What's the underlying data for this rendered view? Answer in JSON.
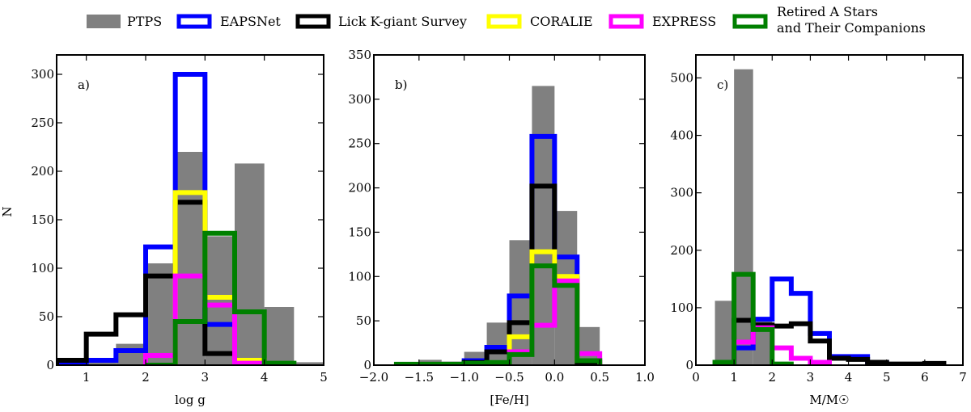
{
  "legend": [
    {
      "label": "PTPS",
      "color": "#808080",
      "style": "filled"
    },
    {
      "label": "EAPSNet",
      "color": "#0000ff",
      "style": "outline"
    },
    {
      "label": "Lick K-giant Survey",
      "color": "#000000",
      "style": "outline"
    },
    {
      "label": "CORALIE",
      "color": "#ffff00",
      "style": "outline"
    },
    {
      "label": "EXPRESS",
      "color": "#ff00ff",
      "style": "outline"
    },
    {
      "label": "Retired A Stars",
      "label2": "and Their Companions",
      "color": "#008000",
      "style": "outline"
    }
  ],
  "y_axis_label": "N",
  "chart_data": [
    {
      "type": "histogram",
      "panel_label": "a)",
      "xlabel": "log g",
      "xlim": [
        0.5,
        5
      ],
      "ylim": [
        0,
        320
      ],
      "xticks": [
        1,
        2,
        3,
        4,
        5
      ],
      "yticks": [
        0,
        50,
        100,
        150,
        200,
        250,
        300
      ],
      "series": [
        {
          "name": "PTPS",
          "bins": [
            0.5,
            1.0,
            1.5,
            2.0,
            2.5,
            3.0,
            3.5,
            4.0,
            4.5,
            5.0
          ],
          "values": [
            3,
            5,
            22,
            105,
            220,
            133,
            208,
            60,
            3
          ]
        },
        {
          "name": "EAPSNet",
          "bins": [
            0.5,
            1.0,
            1.5,
            2.0,
            2.5,
            3.0,
            3.5
          ],
          "values": [
            0,
            5,
            15,
            122,
            300,
            42
          ]
        },
        {
          "name": "Lick K-giant Survey",
          "bins": [
            0.5,
            1.0,
            1.5,
            2.0,
            2.5,
            3.0,
            3.5
          ],
          "values": [
            5,
            32,
            52,
            92,
            168,
            12
          ]
        },
        {
          "name": "CORALIE",
          "bins": [
            2.5,
            3.0,
            3.5,
            4.0
          ],
          "values": [
            178,
            70,
            5
          ]
        },
        {
          "name": "EXPRESS",
          "bins": [
            2.0,
            2.5,
            3.0,
            3.5,
            4.0
          ],
          "values": [
            10,
            92,
            62,
            2
          ]
        },
        {
          "name": "Retired A Stars and Their Companions",
          "bins": [
            2.0,
            2.5,
            3.0,
            3.5,
            4.0,
            4.5
          ],
          "values": [
            0,
            45,
            136,
            55,
            2
          ]
        }
      ]
    },
    {
      "type": "histogram",
      "panel_label": "b)",
      "xlabel": "[Fe/H]",
      "xlim": [
        -2.0,
        1.0
      ],
      "ylim": [
        0,
        350
      ],
      "xticks": [
        -2.0,
        -1.5,
        -1.0,
        -0.5,
        0.0,
        0.5,
        1.0
      ],
      "yticks": [
        0,
        50,
        100,
        150,
        200,
        250,
        300,
        350
      ],
      "series": [
        {
          "name": "PTPS",
          "bins": [
            -1.75,
            -1.5,
            -1.25,
            -1.0,
            -0.75,
            -0.5,
            -0.25,
            0.0,
            0.25,
            0.5
          ],
          "values": [
            2,
            6,
            4,
            15,
            48,
            141,
            315,
            174,
            43
          ]
        },
        {
          "name": "EAPSNet",
          "bins": [
            -1.0,
            -0.75,
            -0.5,
            -0.25,
            0.0,
            0.25,
            0.5
          ],
          "values": [
            5,
            20,
            78,
            258,
            122,
            5
          ]
        },
        {
          "name": "Lick K-giant Survey",
          "bins": [
            -1.0,
            -0.75,
            -0.5,
            -0.25,
            0.0,
            0.25,
            0.5
          ],
          "values": [
            3,
            15,
            48,
            202,
            98,
            3
          ]
        },
        {
          "name": "CORALIE",
          "bins": [
            -0.5,
            -0.25,
            0.0,
            0.25,
            0.5
          ],
          "values": [
            32,
            128,
            100,
            5
          ]
        },
        {
          "name": "EXPRESS",
          "bins": [
            -0.5,
            -0.25,
            0.0,
            0.25,
            0.5
          ],
          "values": [
            15,
            45,
            95,
            13
          ]
        },
        {
          "name": "Retired A Stars and Their Companions",
          "bins": [
            -1.75,
            -1.5,
            -1.25,
            -1.0,
            -0.75,
            -0.5,
            -0.25,
            0.0,
            0.25,
            0.5
          ],
          "values": [
            1,
            1,
            1,
            2,
            3,
            12,
            112,
            90,
            5
          ]
        }
      ]
    },
    {
      "type": "histogram",
      "panel_label": "c)",
      "xlabel": "M/M☉",
      "xlim": [
        0,
        7
      ],
      "ylim": [
        0,
        540
      ],
      "xticks": [
        0,
        1,
        2,
        3,
        4,
        5,
        6,
        7
      ],
      "yticks": [
        0,
        100,
        200,
        300,
        400,
        500
      ],
      "series": [
        {
          "name": "PTPS",
          "bins": [
            0.5,
            1.0,
            1.5,
            2.0
          ],
          "values": [
            112,
            515,
            78
          ]
        },
        {
          "name": "EAPSNet",
          "bins": [
            1.0,
            1.5,
            2.0,
            2.5,
            3.0,
            3.5,
            4.0,
            4.5,
            5.0
          ],
          "values": [
            30,
            80,
            150,
            125,
            55,
            15,
            15,
            5
          ]
        },
        {
          "name": "Lick K-giant Survey",
          "bins": [
            1.0,
            1.5,
            2.0,
            2.5,
            3.0,
            3.5,
            4.0,
            4.5,
            5.0,
            5.5,
            6.0,
            6.5
          ],
          "values": [
            78,
            70,
            68,
            72,
            42,
            12,
            10,
            5,
            2,
            2,
            3
          ]
        },
        {
          "name": "EXPRESS",
          "bins": [
            1.0,
            1.5,
            2.0,
            2.5,
            3.0,
            3.5
          ],
          "values": [
            40,
            65,
            30,
            12,
            5
          ]
        },
        {
          "name": "Retired A Stars and Their Companions",
          "bins": [
            0.5,
            1.0,
            1.5,
            2.0,
            2.5
          ],
          "values": [
            5,
            158,
            62,
            2
          ]
        }
      ]
    }
  ]
}
